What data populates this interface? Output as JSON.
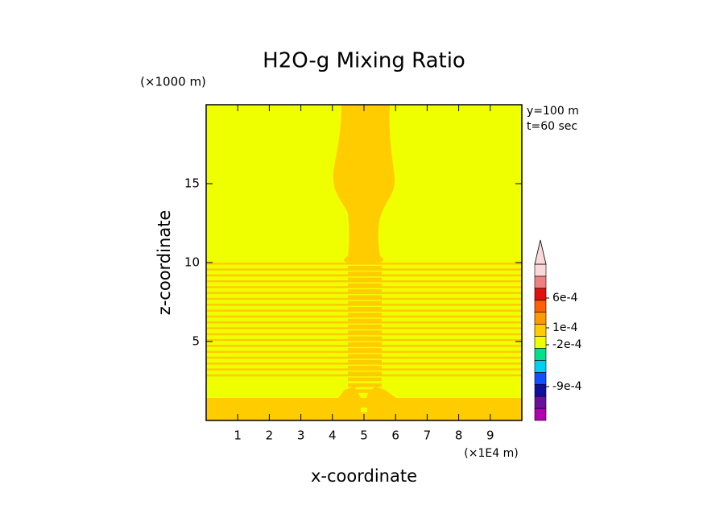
{
  "chart_data": {
    "type": "contour",
    "title": "H2O-g Mixing Ratio",
    "x_label": "x-coordinate",
    "y_label": "z-coordinate",
    "x_unit": "(×1E4 m)",
    "y_unit": "(×1000 m)",
    "annotations": [
      "y=100 m",
      "t=60 sec"
    ],
    "xlim": [
      0,
      10
    ],
    "xticks": [
      1,
      2,
      3,
      4,
      5,
      6,
      7,
      8,
      9
    ],
    "ylim": [
      0,
      20
    ],
    "yticks": [
      5,
      10,
      15
    ],
    "field_colors": [
      "#f0ff00",
      "#ffcc00"
    ],
    "colorbar": {
      "colors": [
        "#b000b0",
        "#6a109a",
        "#1010a0",
        "#1050ff",
        "#00d0f0",
        "#00e08a",
        "#f0ff00",
        "#ffcc00",
        "#ff9a00",
        "#ff6000",
        "#e01010",
        "#f08080",
        "#f8d8d8"
      ],
      "ticks": [
        {
          "value": 0.0006,
          "label": "6e-4"
        },
        {
          "value": 0.0001,
          "label": "1e-4"
        },
        {
          "value": -0.0002,
          "label": "-2e-4"
        },
        {
          "value": -0.0009,
          "label": "-9e-4"
        }
      ]
    }
  }
}
